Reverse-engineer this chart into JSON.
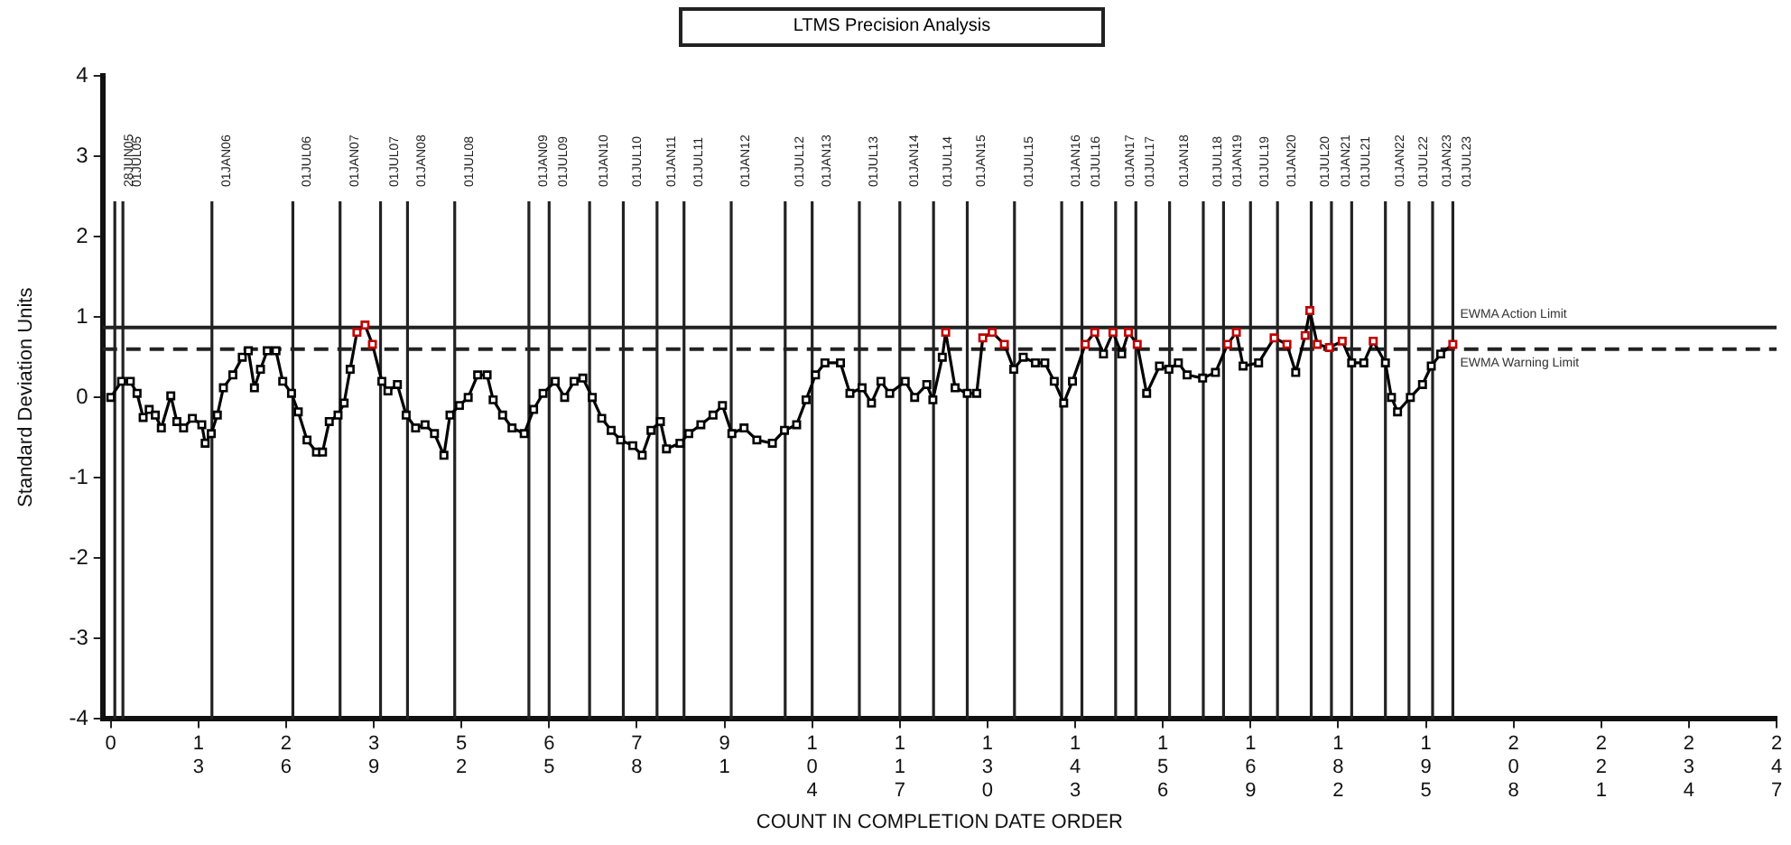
{
  "chart_data": {
    "type": "line",
    "title": "LTMS Precision Analysis",
    "xlabel": "COUNT IN COMPLETION DATE ORDER",
    "ylabel": "Standard Deviation Units",
    "xlim": [
      -1.2,
      247
    ],
    "xticks": [
      0,
      13,
      26,
      39,
      52,
      65,
      78,
      91,
      104,
      117,
      130,
      143,
      156,
      169,
      182,
      195,
      208,
      221,
      234,
      247
    ],
    "ylim": [
      -4,
      4
    ],
    "yticks": [
      -4,
      -3,
      -2,
      -1,
      0,
      1,
      2,
      3,
      4
    ],
    "grid": false,
    "legend": false,
    "marker": "square",
    "line_style": "solid",
    "series": [
      {
        "color": "#000000",
        "x": [
          0,
          1.6,
          2.9,
          3.9,
          4.8,
          5.7,
          6.6,
          7.5,
          8.9,
          9.8,
          10.8,
          12.1,
          13.5,
          14,
          14.9,
          15.8,
          16.7,
          18.1,
          19.5,
          20.4,
          21.3,
          22.2,
          23.2,
          24.5,
          25.5,
          26.8,
          27.8,
          29.1,
          30.5,
          31.4,
          32.4,
          33.7,
          34.6,
          35.5,
          36.5,
          37.7,
          38.8,
          40.2,
          41.1,
          42.5,
          43.8,
          45.2,
          46.6,
          48,
          49.4,
          50.3,
          51.7,
          53,
          54.4,
          55.8,
          56.7,
          58.1,
          59.5,
          61.3,
          62.7,
          64.1,
          65.9,
          67.3,
          68.7,
          70,
          71.4,
          72.8,
          74.2,
          75.6,
          77.4,
          78.8,
          80.1,
          81.5,
          82.4,
          84.4,
          85.7,
          87.5,
          89.3,
          90.7,
          92.1,
          93.9,
          95.8,
          98.1,
          99.9,
          101.7,
          103.1,
          104.5,
          105.9,
          108.2,
          109.6,
          111.4,
          112.8,
          114.2,
          115.5,
          117.8,
          119.2,
          121,
          121.9,
          123.3,
          123.8,
          125.2,
          127,
          128.4,
          129.3,
          130.7,
          132.5,
          133.9,
          135.3,
          137.1,
          138.5,
          139.9,
          141.3,
          142.6,
          144.5,
          145.9,
          147.2,
          148.6,
          149.9,
          150.9,
          152.2,
          153.6,
          155.5,
          156.9,
          158.3,
          159.6,
          161.9,
          163.8,
          165.6,
          166.9,
          167.9,
          170.2,
          172.5,
          174.4,
          175.7,
          177.1,
          177.8,
          178.9,
          180.7,
          182.6,
          184,
          185.8,
          187.2,
          189,
          189.9,
          190.8,
          192.7,
          194.5,
          195.8,
          197.2,
          199
        ],
        "values": [
          0,
          0.2,
          0.2,
          0.05,
          -0.25,
          -0.15,
          -0.22,
          -0.38,
          0.02,
          -0.3,
          -0.38,
          -0.26,
          -0.34,
          -0.57,
          -0.45,
          -0.22,
          0.12,
          0.28,
          0.5,
          0.58,
          0.12,
          0.35,
          0.58,
          0.58,
          0.2,
          0.05,
          -0.18,
          -0.53,
          -0.68,
          -0.68,
          -0.3,
          -0.22,
          -0.07,
          0.35,
          0.81,
          0.9,
          0.66,
          0.2,
          0.08,
          0.16,
          -0.22,
          -0.38,
          -0.34,
          -0.45,
          -0.72,
          -0.22,
          -0.1,
          0,
          0.28,
          0.28,
          -0.03,
          -0.22,
          -0.38,
          -0.45,
          -0.15,
          0.05,
          0.2,
          0,
          0.2,
          0.24,
          0,
          -0.26,
          -0.41,
          -0.53,
          -0.6,
          -0.72,
          -0.41,
          -0.3,
          -0.64,
          -0.57,
          -0.45,
          -0.34,
          -0.22,
          -0.1,
          -0.45,
          -0.38,
          -0.53,
          -0.57,
          -0.41,
          -0.34,
          -0.03,
          0.28,
          0.43,
          0.43,
          0.05,
          0.12,
          -0.07,
          0.2,
          0.05,
          0.2,
          0,
          0.16,
          -0.03,
          0.5,
          0.81,
          0.12,
          0.05,
          0.05,
          0.74,
          0.81,
          0.66,
          0.35,
          0.5,
          0.43,
          0.43,
          0.2,
          -0.07,
          0.2,
          0.66,
          0.81,
          0.54,
          0.81,
          0.54,
          0.81,
          0.66,
          0.05,
          0.39,
          0.35,
          0.43,
          0.28,
          0.24,
          0.31,
          0.66,
          0.81,
          0.39,
          0.43,
          0.74,
          0.66,
          0.31,
          0.77,
          1.08,
          0.66,
          0.62,
          0.7,
          0.43,
          0.43,
          0.7,
          0.43,
          0,
          -0.18,
          0,
          0.16,
          0.39,
          0.54,
          0.66
        ],
        "colors": [
          "#000000",
          "#000000",
          "#000000",
          "#000000",
          "#000000",
          "#000000",
          "#000000",
          "#000000",
          "#000000",
          "#000000",
          "#000000",
          "#000000",
          "#000000",
          "#000000",
          "#000000",
          "#000000",
          "#000000",
          "#000000",
          "#000000",
          "#000000",
          "#000000",
          "#000000",
          "#000000",
          "#000000",
          "#000000",
          "#000000",
          "#000000",
          "#000000",
          "#000000",
          "#000000",
          "#000000",
          "#000000",
          "#000000",
          "#000000",
          "#c00000",
          "#c00000",
          "#c00000",
          "#000000",
          "#000000",
          "#000000",
          "#000000",
          "#000000",
          "#000000",
          "#000000",
          "#000000",
          "#000000",
          "#000000",
          "#000000",
          "#000000",
          "#000000",
          "#000000",
          "#000000",
          "#000000",
          "#000000",
          "#000000",
          "#000000",
          "#000000",
          "#000000",
          "#000000",
          "#000000",
          "#000000",
          "#000000",
          "#000000",
          "#000000",
          "#000000",
          "#000000",
          "#000000",
          "#000000",
          "#000000",
          "#000000",
          "#000000",
          "#000000",
          "#000000",
          "#000000",
          "#000000",
          "#000000",
          "#000000",
          "#000000",
          "#000000",
          "#000000",
          "#000000",
          "#000000",
          "#000000",
          "#000000",
          "#000000",
          "#000000",
          "#000000",
          "#000000",
          "#000000",
          "#000000",
          "#000000",
          "#000000",
          "#000000",
          "#000000",
          "#c00000",
          "#000000",
          "#000000",
          "#000000",
          "#c00000",
          "#c00000",
          "#c00000",
          "#000000",
          "#000000",
          "#000000",
          "#000000",
          "#000000",
          "#000000",
          "#000000",
          "#c00000",
          "#c00000",
          "#000000",
          "#c00000",
          "#000000",
          "#c00000",
          "#c00000",
          "#000000",
          "#000000",
          "#000000",
          "#000000",
          "#000000",
          "#000000",
          "#000000",
          "#c00000",
          "#c00000",
          "#000000",
          "#000000",
          "#c00000",
          "#c00000",
          "#000000",
          "#c00000",
          "#c00000",
          "#c00000",
          "#c00000",
          "#c00000",
          "#000000",
          "#000000",
          "#c00000",
          "#000000",
          "#000000",
          "#000000",
          "#000000",
          "#000000",
          "#000000",
          "#000000",
          "#c00000"
        ]
      }
    ],
    "ref_lines": [
      {
        "axis": "y",
        "value": 0.87,
        "label": "EWMA Action Limit",
        "line_style": "solid"
      },
      {
        "axis": "y",
        "value": 0.6,
        "label": "EWMA Warning Limit",
        "line_style": "dashed"
      },
      {
        "axis": "x",
        "value": 0.6,
        "label": "28JUN05"
      },
      {
        "axis": "x",
        "value": 1.8,
        "label": "01JUL05"
      },
      {
        "axis": "x",
        "value": 15,
        "label": "01JAN06"
      },
      {
        "axis": "x",
        "value": 27,
        "label": "01JUL06"
      },
      {
        "axis": "x",
        "value": 34,
        "label": "01JAN07"
      },
      {
        "axis": "x",
        "value": 40,
        "label": "01JUL07"
      },
      {
        "axis": "x",
        "value": 44,
        "label": "01JAN08"
      },
      {
        "axis": "x",
        "value": 51,
        "label": "01JUL08"
      },
      {
        "axis": "x",
        "value": 62,
        "label": "01JAN09"
      },
      {
        "axis": "x",
        "value": 65,
        "label": "01JUL09"
      },
      {
        "axis": "x",
        "value": 71,
        "label": "01JAN10"
      },
      {
        "axis": "x",
        "value": 76,
        "label": "01JUL10"
      },
      {
        "axis": "x",
        "value": 81,
        "label": "01JAN11"
      },
      {
        "axis": "x",
        "value": 85,
        "label": "01JUL11"
      },
      {
        "axis": "x",
        "value": 92,
        "label": "01JAN12"
      },
      {
        "axis": "x",
        "value": 100,
        "label": "01JUL12"
      },
      {
        "axis": "x",
        "value": 104,
        "label": "01JAN13"
      },
      {
        "axis": "x",
        "value": 111,
        "label": "01JUL13"
      },
      {
        "axis": "x",
        "value": 117,
        "label": "01JAN14"
      },
      {
        "axis": "x",
        "value": 122,
        "label": "01JUL14"
      },
      {
        "axis": "x",
        "value": 127,
        "label": "01JAN15"
      },
      {
        "axis": "x",
        "value": 134,
        "label": "01JUL15"
      },
      {
        "axis": "x",
        "value": 141,
        "label": "01JAN16"
      },
      {
        "axis": "x",
        "value": 144,
        "label": "01JUL16"
      },
      {
        "axis": "x",
        "value": 149,
        "label": "01JAN17"
      },
      {
        "axis": "x",
        "value": 152,
        "label": "01JUL17"
      },
      {
        "axis": "x",
        "value": 157,
        "label": "01JAN18"
      },
      {
        "axis": "x",
        "value": 162,
        "label": "01JUL18"
      },
      {
        "axis": "x",
        "value": 165,
        "label": "01JAN19"
      },
      {
        "axis": "x",
        "value": 169,
        "label": "01JUL19"
      },
      {
        "axis": "x",
        "value": 173,
        "label": "01JAN20"
      },
      {
        "axis": "x",
        "value": 178,
        "label": "01JUL20"
      },
      {
        "axis": "x",
        "value": 181,
        "label": "01JAN21"
      },
      {
        "axis": "x",
        "value": 184,
        "label": "01JUL21"
      },
      {
        "axis": "x",
        "value": 189,
        "label": "01JAN22"
      },
      {
        "axis": "x",
        "value": 192.5,
        "label": "01JUL22"
      },
      {
        "axis": "x",
        "value": 196,
        "label": "01JAN23"
      },
      {
        "axis": "x",
        "value": 199,
        "label": "01JUL23"
      }
    ]
  }
}
